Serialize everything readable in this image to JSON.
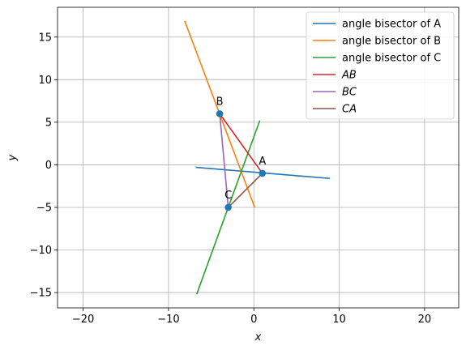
{
  "chart_data": {
    "type": "line",
    "title": "",
    "xlabel": "x",
    "ylabel": "y",
    "xlim": [
      -23,
      24
    ],
    "ylim": [
      -16.8,
      18.5
    ],
    "xticks": [
      -20,
      -10,
      0,
      10,
      20
    ],
    "yticks": [
      -15,
      -10,
      -5,
      0,
      5,
      10,
      15
    ],
    "grid": true,
    "legend_position": "top-right",
    "series": [
      {
        "name": "angle bisector of A",
        "math": false,
        "color": "#1f77b4",
        "x": [
          -6.8,
          8.9
        ],
        "y": [
          -0.3,
          -1.6
        ]
      },
      {
        "name": "angle bisector of B",
        "math": false,
        "color": "#ff7f0e",
        "x": [
          -8.1,
          0.1
        ],
        "y": [
          16.9,
          -5.0
        ]
      },
      {
        "name": "angle bisector of C",
        "math": false,
        "color": "#2ca02c",
        "x": [
          -6.7,
          0.7
        ],
        "y": [
          -15.2,
          5.2
        ]
      },
      {
        "name": "AB",
        "math": true,
        "color": "#d62728",
        "x": [
          1,
          -4
        ],
        "y": [
          -1,
          6
        ]
      },
      {
        "name": "BC",
        "math": true,
        "color": "#9467bd",
        "x": [
          -4,
          -3
        ],
        "y": [
          6,
          -5
        ]
      },
      {
        "name": "CA",
        "math": true,
        "color": "#8c564b",
        "x": [
          -3,
          1
        ],
        "y": [
          -5,
          -1
        ]
      }
    ],
    "points": [
      {
        "label": "A",
        "x": 1,
        "y": -1
      },
      {
        "label": "B",
        "x": -4,
        "y": 6
      },
      {
        "label": "C",
        "x": -3,
        "y": -5
      }
    ],
    "point_color": "#1f77b4"
  }
}
